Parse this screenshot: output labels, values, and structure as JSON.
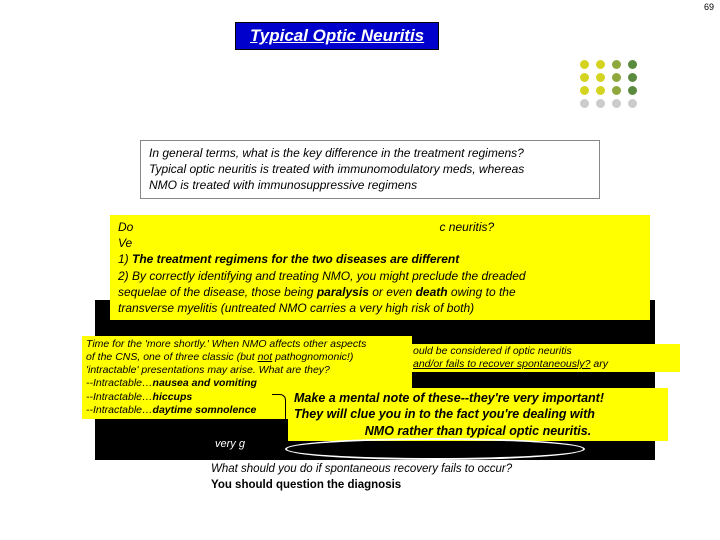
{
  "page_number": "69",
  "title": "Typical Optic Neuritis",
  "dot_colors": [
    "#d4d420",
    "#d4d420",
    "#8fa83e",
    "#5a8a3e",
    "#d4d420",
    "#d4d420",
    "#8fa83e",
    "#5a8a3e",
    "#d4d420",
    "#d4d420",
    "#8fa83e",
    "#5a8a3e",
    "#cccccc",
    "#cccccc",
    "#cccccc",
    "#cccccc"
  ],
  "regimens": {
    "q": "In general terms, what is the key difference in the treatment regimens?",
    "a1_pre": "Typical optic neuritis is treated with ",
    "a1_em": "immunomodulatory",
    "a1_post": " meds, whereas",
    "a2_pre": "NMO is treated with ",
    "a2_em": "immunosuppressive",
    "a2_post": " regimens"
  },
  "matter": {
    "q_pre": "Do",
    "q_post": "c neuritis?",
    "l1": "Ve",
    "l2_pre": "1) ",
    "l2_b": "The treatment regimens for the two diseases are different",
    "l3": "2) By correctly identifying and treating NMO, you might preclude the dreaded",
    "l4_pre": "sequelae of the disease, those being ",
    "l4_b1": "paralysis",
    "l4_mid": " or even ",
    "l4_b2": "death",
    "l4_post": " owing to the",
    "l5": "transverse myelitis (untreated NMO carries a very high risk of both)"
  },
  "time": {
    "l1": "Time for the 'more shortly.' When NMO affects other aspects",
    "l2_pre": "of the CNS, one of three classic (but ",
    "l2_u": "not",
    "l2_post": " pathognomonic!)",
    "l3": "'intractable' presentations may arise. What are they?",
    "l4_pre": "--Intractable…",
    "l4_b": "nausea and vomiting",
    "l5_pre": "--Intractable…",
    "l5_b": "hiccups",
    "l6_pre": "--Intractable…",
    "l6_b": "daytime somnolence"
  },
  "should": {
    "l1": "ould be considered if optic neuritis",
    "l2_u": "and/or fails to recover spontaneously?",
    "l2_end": "ary"
  },
  "mental": {
    "l1": "Make a mental note of these--they're very important!",
    "l2": "They will clue you in to the fact you're dealing with",
    "l3": "NMO rather than typical optic neuritis."
  },
  "black_peek": "very g",
  "bottom": {
    "q": "What should you do if spontaneous recovery fails to occur?",
    "a": "You should question the diagnosis"
  }
}
